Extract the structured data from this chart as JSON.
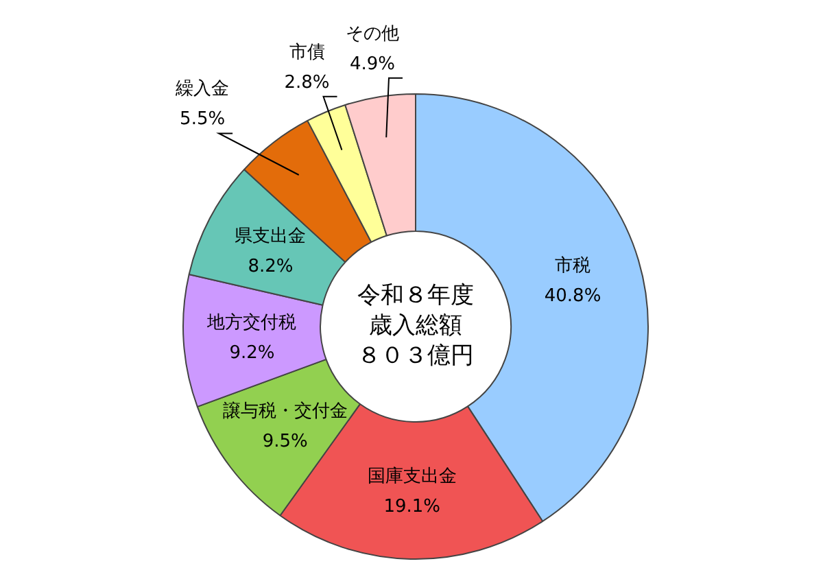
{
  "chart_data": {
    "type": "donut",
    "title": "令和８年度歳入総額",
    "subtitle": "８０３億円",
    "categories": [
      "市税",
      "国庫支出金",
      "譲与税・交付金",
      "地方交付税",
      "県支出金",
      "繰入金",
      "市債",
      "その他"
    ],
    "values": [
      40.8,
      19.1,
      9.5,
      9.2,
      8.2,
      5.5,
      2.8,
      4.9
    ],
    "value_labels": [
      "40.8%",
      "19.1%",
      "9.5%",
      "9.2%",
      "8.2%",
      "5.5%",
      "2.8%",
      "4.9%"
    ],
    "colors": [
      "#99ccff",
      "#f05454",
      "#92d050",
      "#cc99ff",
      "#66c6b6",
      "#e36c0a",
      "#ffff99",
      "#ffcccc"
    ],
    "legend": false
  }
}
